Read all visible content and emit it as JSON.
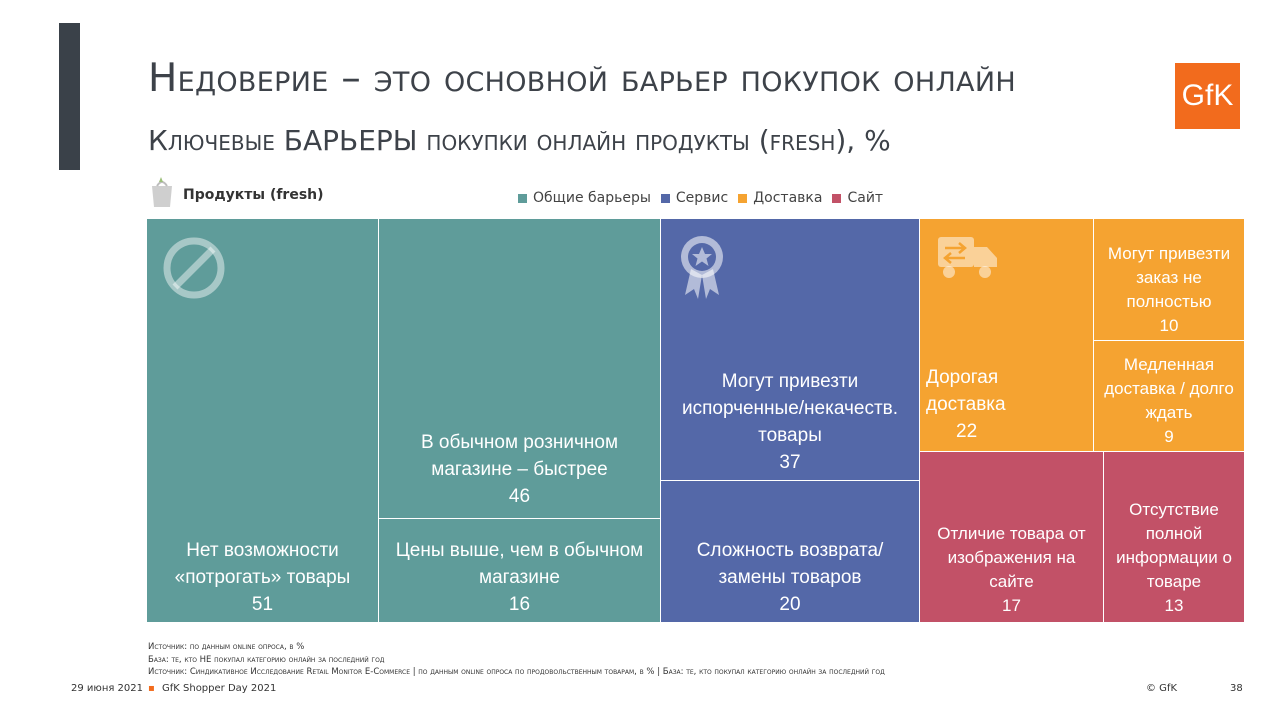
{
  "slide": {
    "title": "Недоверие – это основной барьер покупок онлайн",
    "subtitle": "Ключевые БАРЬЕРЫ покупки онлайн продукты (fresh), %",
    "logo_text": "GfK",
    "category_label": "Продукты (fresh)"
  },
  "legend": [
    {
      "label": "Общие барьеры",
      "color": "#5f9c9a"
    },
    {
      "label": "Сервис",
      "color": "#5468a8"
    },
    {
      "label": "Доставка",
      "color": "#f5a331"
    },
    {
      "label": "Сайт",
      "color": "#c25167"
    }
  ],
  "chart_data": {
    "type": "treemap",
    "title": "Ключевые БАРЬЕРЫ покупки онлайн продукты (fresh), %",
    "unit": "%",
    "groups": [
      {
        "name": "Общие барьеры",
        "color": "#5f9c9a",
        "items": [
          {
            "label": "Нет возможности «потрогать» товары",
            "value": 51
          },
          {
            "label": "В обычном розничном магазине – быстрее",
            "value": 46
          },
          {
            "label": "Цены выше, чем в обычном магазине",
            "value": 16
          }
        ]
      },
      {
        "name": "Сервис",
        "color": "#5468a8",
        "items": [
          {
            "label": "Могут привезти испорченные/некачеств. товары",
            "value": 37
          },
          {
            "label": "Сложность возврата/ замены товаров",
            "value": 20
          }
        ]
      },
      {
        "name": "Доставка",
        "color": "#f5a331",
        "items": [
          {
            "label": "Дорогая доставка",
            "value": 22
          },
          {
            "label": "Могут привезти заказ не полностью",
            "value": 10
          },
          {
            "label": "Медленная доставка / долго ждать",
            "value": 9
          }
        ]
      },
      {
        "name": "Сайт",
        "color": "#c25167",
        "items": [
          {
            "label": "Отличие товара от изображения на сайте",
            "value": 17
          },
          {
            "label": "Отсутствие полной информации о товаре",
            "value": 13
          }
        ]
      }
    ]
  },
  "footnotes": [
    "Источник: по данным online опроса, в %",
    "База: те, кто НЕ покупал категорию онлайн за последний год",
    "Источник: Синдикативное Исследование Retail Monitor E-Commerce | по данным online опроса по продовольственным товарам, в % | База: те, кто покупал категорию онлайн за последний год"
  ],
  "footer": {
    "date": "29 июня 2021",
    "event": "GfK Shopper Day 2021",
    "copyright": "© GfK",
    "page": "38"
  }
}
